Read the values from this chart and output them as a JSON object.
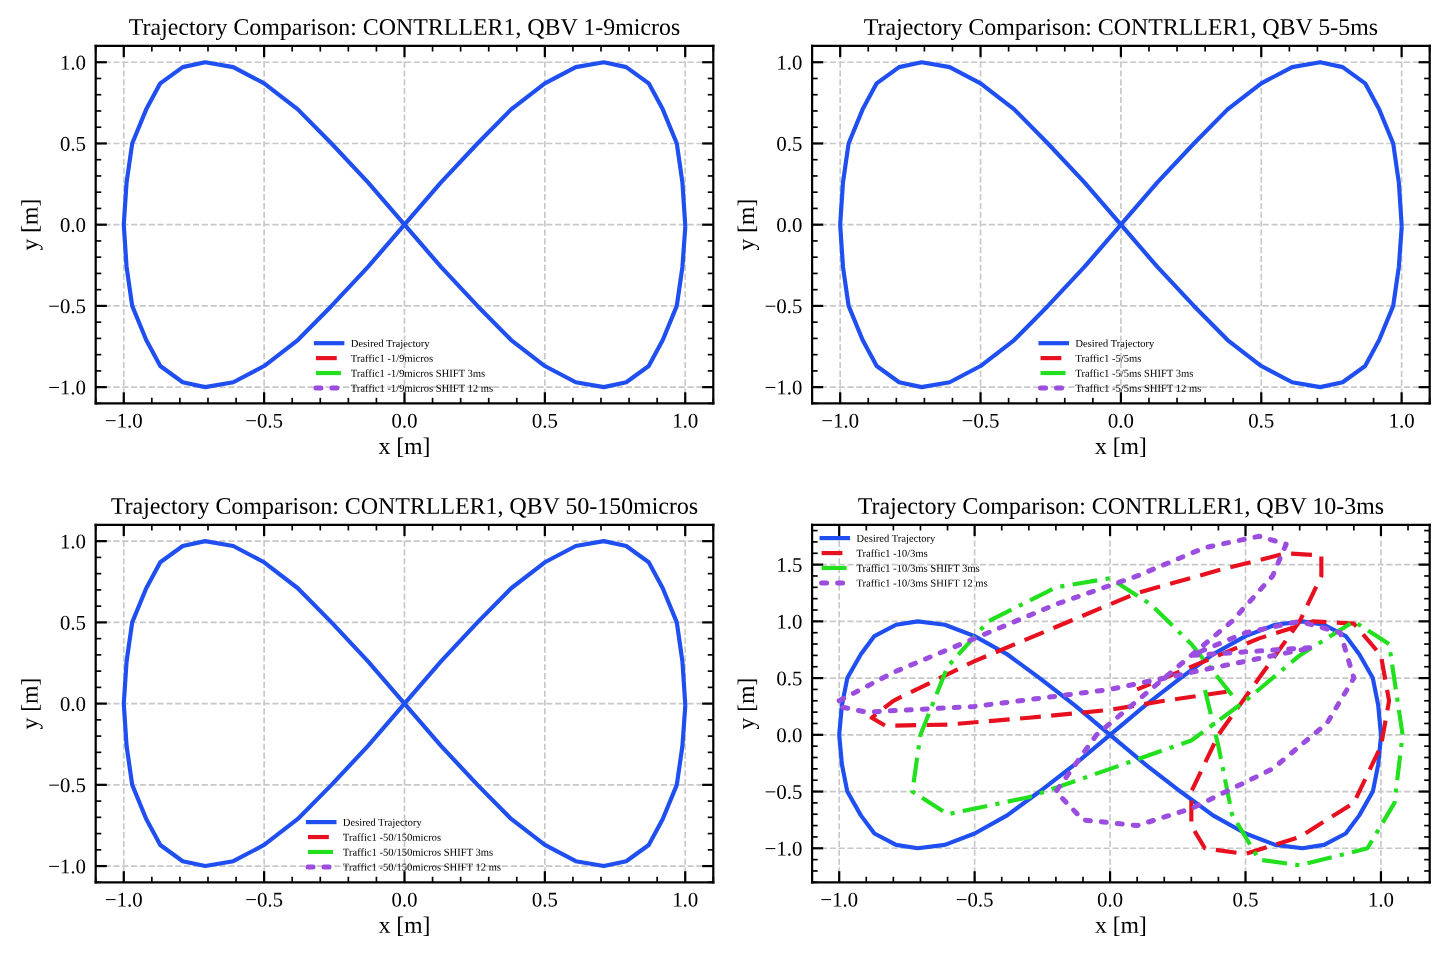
{
  "chart_data": [
    {
      "type": "line",
      "title": "Trajectory Comparison: CONTRLLER1, QBV 1-9micros",
      "xlabel": "x [m]",
      "ylabel": "y [m]",
      "xlim": [
        -1.1,
        1.1
      ],
      "ylim": [
        -1.1,
        1.1
      ],
      "xticks": [
        {
          "value": -1.0,
          "label": "−1.0"
        },
        {
          "value": -0.5,
          "label": "−0.5"
        },
        {
          "value": 0.0,
          "label": "0.0"
        },
        {
          "value": 0.5,
          "label": "0.5"
        },
        {
          "value": 1.0,
          "label": "1.0"
        }
      ],
      "yticks": [
        {
          "value": -1.0,
          "label": "−1.0"
        },
        {
          "value": -0.5,
          "label": "−0.5"
        },
        {
          "value": 0.0,
          "label": "0.0"
        },
        {
          "value": 0.5,
          "label": "0.5"
        },
        {
          "value": 1.0,
          "label": "1.0"
        }
      ],
      "grid": true,
      "legend": "bottom",
      "series": [
        {
          "name": "Desired Trajectory",
          "color": "#1f4ff0",
          "line_style": "solid",
          "x": [
            1,
            0.99,
            0.97,
            0.92,
            0.87,
            0.79,
            0.71,
            0.61,
            0.5,
            0.38,
            0.26,
            0.13,
            0,
            -0.13,
            -0.26,
            -0.38,
            -0.5,
            -0.61,
            -0.71,
            -0.79,
            -0.87,
            -0.92,
            -0.97,
            -0.99,
            -1,
            -0.99,
            -0.97,
            -0.92,
            -0.87,
            -0.79,
            -0.71,
            -0.61,
            -0.5,
            -0.38,
            -0.26,
            -0.13,
            0,
            0.13,
            0.26,
            0.38,
            0.5,
            0.61,
            0.71,
            0.79,
            0.87,
            0.92,
            0.97,
            0.99,
            1
          ],
          "values": [
            0,
            0.26,
            0.5,
            0.71,
            0.87,
            0.97,
            1,
            0.97,
            0.87,
            0.71,
            0.5,
            0.26,
            0,
            -0.26,
            -0.5,
            -0.71,
            -0.87,
            -0.97,
            -1,
            -0.97,
            -0.87,
            -0.71,
            -0.5,
            -0.26,
            0,
            0.26,
            0.5,
            0.71,
            0.87,
            0.97,
            1,
            0.97,
            0.87,
            0.71,
            0.5,
            0.26,
            0,
            -0.26,
            -0.5,
            -0.71,
            -0.87,
            -0.97,
            -1,
            -0.97,
            -0.87,
            -0.71,
            -0.5,
            -0.26,
            -0.02
          ]
        },
        {
          "name": "Traffic1 -1/9micros",
          "color": "#e8101e",
          "line_style": "dashed",
          "x": [
            null
          ],
          "values": [
            null
          ]
        },
        {
          "name": "Traffic1 -1/9micros SHIFT 3ms",
          "color": "#22e01e",
          "line_style": "dashdot",
          "x": [
            null
          ],
          "values": [
            null
          ]
        },
        {
          "name": "Traffic1 -1/9micros SHIFT 12 ms",
          "color": "#9b4de0",
          "line_style": "dotted",
          "x": [
            null
          ],
          "values": [
            null
          ]
        }
      ]
    },
    {
      "type": "line",
      "title": "Trajectory Comparison: CONTRLLER1, QBV 5-5ms",
      "xlabel": "x [m]",
      "ylabel": "y [m]",
      "xlim": [
        -1.1,
        1.1
      ],
      "ylim": [
        -1.1,
        1.1
      ],
      "xticks": [
        {
          "value": -1.0,
          "label": "−1.0"
        },
        {
          "value": -0.5,
          "label": "−0.5"
        },
        {
          "value": 0.0,
          "label": "0.0"
        },
        {
          "value": 0.5,
          "label": "0.5"
        },
        {
          "value": 1.0,
          "label": "1.0"
        }
      ],
      "yticks": [
        {
          "value": -1.0,
          "label": "−1.0"
        },
        {
          "value": -0.5,
          "label": "−0.5"
        },
        {
          "value": 0.0,
          "label": "0.0"
        },
        {
          "value": 0.5,
          "label": "0.5"
        },
        {
          "value": 1.0,
          "label": "1.0"
        }
      ],
      "grid": true,
      "legend": "bottom",
      "series": [
        {
          "name": "Desired Trajectory",
          "color": "#1f4ff0",
          "line_style": "solid",
          "x": [
            1,
            0.99,
            0.97,
            0.92,
            0.87,
            0.79,
            0.71,
            0.61,
            0.5,
            0.38,
            0.26,
            0.13,
            0,
            -0.13,
            -0.26,
            -0.38,
            -0.5,
            -0.61,
            -0.71,
            -0.79,
            -0.87,
            -0.92,
            -0.97,
            -0.99,
            -1,
            -0.99,
            -0.97,
            -0.92,
            -0.87,
            -0.79,
            -0.71,
            -0.61,
            -0.5,
            -0.38,
            -0.26,
            -0.13,
            0,
            0.13,
            0.26,
            0.38,
            0.5,
            0.61,
            0.71,
            0.79,
            0.87,
            0.92,
            0.97,
            0.99,
            1
          ],
          "values": [
            0,
            0.26,
            0.5,
            0.71,
            0.87,
            0.97,
            1,
            0.97,
            0.87,
            0.71,
            0.5,
            0.26,
            0,
            -0.26,
            -0.5,
            -0.71,
            -0.87,
            -0.97,
            -1,
            -0.97,
            -0.87,
            -0.71,
            -0.5,
            -0.26,
            0,
            0.26,
            0.5,
            0.71,
            0.87,
            0.97,
            1,
            0.97,
            0.87,
            0.71,
            0.5,
            0.26,
            0,
            -0.26,
            -0.5,
            -0.71,
            -0.87,
            -0.97,
            -1,
            -0.97,
            -0.87,
            -0.71,
            -0.5,
            -0.26,
            -0.02
          ]
        },
        {
          "name": "Traffic1 -5/5ms",
          "color": "#e8101e",
          "line_style": "dashed",
          "x": [
            null
          ],
          "values": [
            null
          ]
        },
        {
          "name": "Traffic1 -5/5ms SHIFT 3ms",
          "color": "#22e01e",
          "line_style": "dashdot",
          "x": [
            null
          ],
          "values": [
            null
          ]
        },
        {
          "name": "Traffic1 -5/5ms SHIFT 12 ms",
          "color": "#9b4de0",
          "line_style": "dotted",
          "x": [
            null
          ],
          "values": [
            null
          ]
        }
      ]
    },
    {
      "type": "line",
      "title": "Trajectory Comparison: CONTRLLER1, QBV 50-150micros",
      "xlabel": "x [m]",
      "ylabel": "y [m]",
      "xlim": [
        -1.1,
        1.1
      ],
      "ylim": [
        -1.1,
        1.1
      ],
      "xticks": [
        {
          "value": -1.0,
          "label": "−1.0"
        },
        {
          "value": -0.5,
          "label": "−0.5"
        },
        {
          "value": 0.0,
          "label": "0.0"
        },
        {
          "value": 0.5,
          "label": "0.5"
        },
        {
          "value": 1.0,
          "label": "1.0"
        }
      ],
      "yticks": [
        {
          "value": -1.0,
          "label": "−1.0"
        },
        {
          "value": -0.5,
          "label": "−0.5"
        },
        {
          "value": 0.0,
          "label": "0.0"
        },
        {
          "value": 0.5,
          "label": "0.5"
        },
        {
          "value": 1.0,
          "label": "1.0"
        }
      ],
      "grid": true,
      "legend": "bottom",
      "series": [
        {
          "name": "Desired Trajectory",
          "color": "#1f4ff0",
          "line_style": "solid",
          "x": [
            1,
            0.99,
            0.97,
            0.92,
            0.87,
            0.79,
            0.71,
            0.61,
            0.5,
            0.38,
            0.26,
            0.13,
            0,
            -0.13,
            -0.26,
            -0.38,
            -0.5,
            -0.61,
            -0.71,
            -0.79,
            -0.87,
            -0.92,
            -0.97,
            -0.99,
            -1,
            -0.99,
            -0.97,
            -0.92,
            -0.87,
            -0.79,
            -0.71,
            -0.61,
            -0.5,
            -0.38,
            -0.26,
            -0.13,
            0,
            0.13,
            0.26,
            0.38,
            0.5,
            0.61,
            0.71,
            0.79,
            0.87,
            0.92,
            0.97,
            0.99,
            1
          ],
          "values": [
            0,
            0.26,
            0.5,
            0.71,
            0.87,
            0.97,
            1,
            0.97,
            0.87,
            0.71,
            0.5,
            0.26,
            0,
            -0.26,
            -0.5,
            -0.71,
            -0.87,
            -0.97,
            -1,
            -0.97,
            -0.87,
            -0.71,
            -0.5,
            -0.26,
            0,
            0.26,
            0.5,
            0.71,
            0.87,
            0.97,
            1,
            0.97,
            0.87,
            0.71,
            0.5,
            0.26,
            0,
            -0.26,
            -0.5,
            -0.71,
            -0.87,
            -0.97,
            -1,
            -0.97,
            -0.87,
            -0.71,
            -0.5,
            -0.26,
            -0.02
          ]
        },
        {
          "name": "Traffic1 -50/150micros",
          "color": "#e8101e",
          "line_style": "dashed",
          "x": [
            null
          ],
          "values": [
            null
          ]
        },
        {
          "name": "Traffic1 -50/150micros SHIFT 3ms",
          "color": "#22e01e",
          "line_style": "dashdot",
          "x": [
            null
          ],
          "values": [
            null
          ]
        },
        {
          "name": "Traffic1 -50/150micros SHIFT 12 ms",
          "color": "#9b4de0",
          "line_style": "dotted",
          "x": [
            null
          ],
          "values": [
            null
          ]
        }
      ]
    },
    {
      "type": "line",
      "title": "Trajectory Comparison: CONTRLLER1, QBV 10-3ms",
      "xlabel": "x [m]",
      "ylabel": "y [m]",
      "xlim": [
        -1.1,
        1.18
      ],
      "ylim": [
        -1.3,
        1.85
      ],
      "xticks": [
        {
          "value": -1.0,
          "label": "−1.0"
        },
        {
          "value": -0.5,
          "label": "−0.5"
        },
        {
          "value": 0.0,
          "label": "0.0"
        },
        {
          "value": 0.5,
          "label": "0.5"
        },
        {
          "value": 1.0,
          "label": "1.0"
        }
      ],
      "yticks": [
        {
          "value": -1.0,
          "label": "−1.0"
        },
        {
          "value": -0.5,
          "label": "−0.5"
        },
        {
          "value": 0.0,
          "label": "0.0"
        },
        {
          "value": 0.5,
          "label": "0.5"
        },
        {
          "value": 1.0,
          "label": "1.0"
        },
        {
          "value": 1.5,
          "label": "1.5"
        }
      ],
      "grid": true,
      "legend": "top left",
      "series": [
        {
          "name": "Desired Trajectory",
          "color": "#1f4ff0",
          "line_style": "solid",
          "x": [
            1,
            0.99,
            0.97,
            0.92,
            0.87,
            0.79,
            0.71,
            0.61,
            0.5,
            0.38,
            0.26,
            0.13,
            0,
            -0.13,
            -0.26,
            -0.38,
            -0.5,
            -0.61,
            -0.71,
            -0.79,
            -0.87,
            -0.92,
            -0.97,
            -0.99,
            -1,
            -0.99,
            -0.97,
            -0.92,
            -0.87,
            -0.79,
            -0.71,
            -0.61,
            -0.5,
            -0.38,
            -0.26,
            -0.13,
            0,
            0.13,
            0.26,
            0.38,
            0.5,
            0.61,
            0.71,
            0.79,
            0.87,
            0.92,
            0.97,
            0.99,
            1
          ],
          "values": [
            0,
            0.26,
            0.5,
            0.71,
            0.87,
            0.97,
            1,
            0.97,
            0.87,
            0.71,
            0.5,
            0.26,
            0,
            -0.26,
            -0.5,
            -0.71,
            -0.87,
            -0.97,
            -1,
            -0.97,
            -0.87,
            -0.71,
            -0.5,
            -0.26,
            0,
            0.26,
            0.5,
            0.71,
            0.87,
            0.97,
            1,
            0.97,
            0.87,
            0.71,
            0.5,
            0.26,
            0,
            -0.26,
            -0.5,
            -0.71,
            -0.87,
            -0.97,
            -1,
            -0.97,
            -0.87,
            -0.71,
            -0.5,
            -0.26,
            -0.02
          ]
        },
        {
          "name": "Traffic1 -10/3ms",
          "color": "#e8101e",
          "line_style": "dashed",
          "x": [
            0.43,
            0.2,
            0.0,
            -0.3,
            -0.6,
            -0.83,
            -0.88,
            -0.8,
            -0.5,
            -0.2,
            0.1,
            0.4,
            0.65,
            0.78,
            0.78,
            0.7,
            0.55,
            0.4,
            0.3,
            0.3,
            0.35,
            0.5,
            0.7,
            0.9,
            1.0,
            1.03,
            1.0,
            0.9,
            0.75,
            0.55,
            0.35,
            0.1
          ],
          "values": [
            0.38,
            0.3,
            0.22,
            0.15,
            0.09,
            0.08,
            0.15,
            0.3,
            0.65,
            0.95,
            1.25,
            1.45,
            1.6,
            1.58,
            1.4,
            1.0,
            0.5,
            0.0,
            -0.5,
            -0.8,
            -1.0,
            -1.05,
            -0.9,
            -0.6,
            -0.1,
            0.3,
            0.7,
            0.98,
            1.0,
            0.85,
            0.65,
            0.4
          ]
        },
        {
          "name": "Traffic1 -10/3ms SHIFT 3ms",
          "color": "#22e01e",
          "line_style": "dashdot",
          "x": [
            0.45,
            0.3,
            0.15,
            0.0,
            -0.2,
            -0.45,
            -0.6,
            -0.7,
            -0.73,
            -0.6,
            -0.3,
            0.0,
            0.3,
            0.5,
            0.7,
            0.9,
            1.03,
            1.08,
            1.05,
            0.95,
            0.7,
            0.55,
            0.45,
            0.4,
            0.35
          ],
          "values": [
            0.35,
            0.8,
            1.15,
            1.38,
            1.3,
            1.0,
            0.6,
            0.0,
            -0.5,
            -0.7,
            -0.55,
            -0.3,
            -0.05,
            0.3,
            0.7,
            1.0,
            0.8,
            0.0,
            -0.6,
            -1.0,
            -1.15,
            -1.1,
            -0.7,
            -0.1,
            0.4
          ]
        },
        {
          "name": "Traffic1 -10/3ms SHIFT 12 ms",
          "color": "#9b4de0",
          "line_style": "dotted",
          "x": [
            -1.0,
            -0.8,
            -0.5,
            -0.2,
            0.1,
            0.35,
            0.55,
            0.65,
            0.6,
            0.45,
            0.2,
            -0.05,
            -0.2,
            -0.1,
            0.1,
            0.3,
            0.6,
            0.8,
            0.9,
            0.85,
            0.7,
            0.5,
            0.3,
            0.75,
            0.4,
            0.0,
            -0.5,
            -0.9,
            -1.0
          ],
          "values": [
            0.3,
            0.55,
            0.85,
            1.15,
            1.4,
            1.65,
            1.75,
            1.68,
            1.4,
            1.0,
            0.5,
            0.0,
            -0.5,
            -0.75,
            -0.8,
            -0.65,
            -0.3,
            0.1,
            0.5,
            0.9,
            1.0,
            0.9,
            0.7,
            0.77,
            0.6,
            0.4,
            0.25,
            0.2,
            0.25
          ]
        }
      ]
    }
  ]
}
